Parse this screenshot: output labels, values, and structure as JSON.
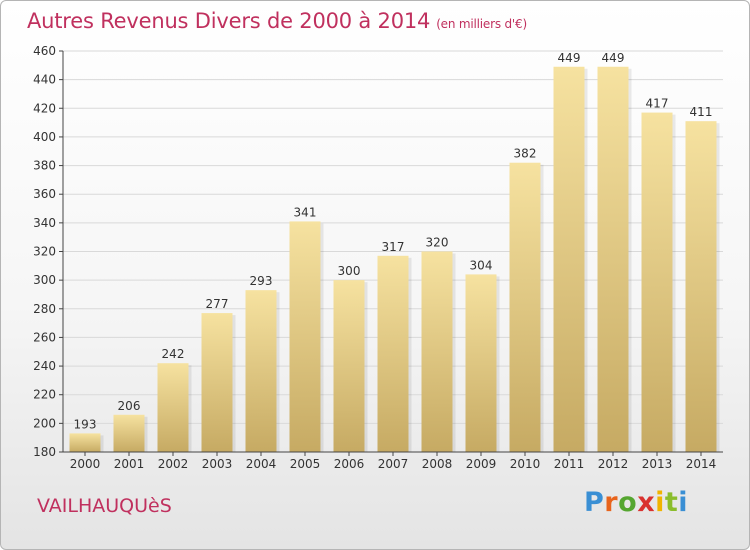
{
  "title": "Autres Revenus Divers de 2000 à 2014",
  "subtitle": "(en milliers d'€)",
  "location": "VAILHAUQUèS",
  "logo": {
    "letters": [
      "P",
      "r",
      "o",
      "x",
      "i",
      "t",
      "i"
    ],
    "colors": [
      "#3a8fd4",
      "#e8641c",
      "#55a630",
      "#d9322f",
      "#f0b400",
      "#8bbd2c",
      "#3a8fd4"
    ]
  },
  "colors": {
    "accent": "#c0305e",
    "bar_light": "#f5e09c",
    "bar_dark": "#c8ac66",
    "grid": "#d9d9d9",
    "axis": "#444444"
  },
  "chart_data": {
    "type": "bar",
    "categories": [
      "2000",
      "2001",
      "2002",
      "2003",
      "2004",
      "2005",
      "2006",
      "2007",
      "2008",
      "2009",
      "2010",
      "2011",
      "2012",
      "2013",
      "2014"
    ],
    "values": [
      193,
      206,
      242,
      277,
      293,
      341,
      300,
      317,
      320,
      304,
      382,
      449,
      449,
      417,
      411
    ],
    "data_labels": [
      "193",
      "206",
      "242",
      "277",
      "293",
      "341",
      "300",
      "317",
      "320",
      "304",
      "382",
      "449",
      "449",
      "417",
      "411"
    ],
    "yticks": [
      180,
      200,
      220,
      240,
      260,
      280,
      300,
      320,
      340,
      360,
      380,
      400,
      420,
      440,
      460
    ],
    "ylim": [
      180,
      460
    ],
    "grid": true,
    "legend": "none"
  }
}
